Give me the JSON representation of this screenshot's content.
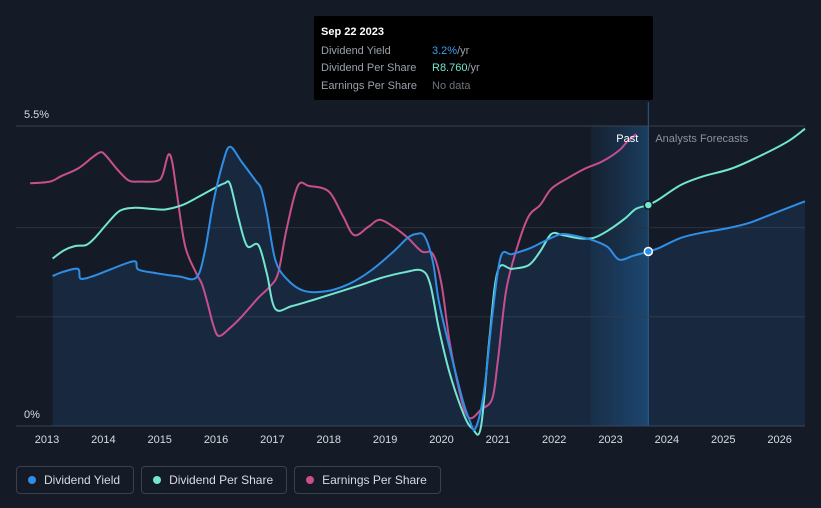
{
  "chart_data": {
    "type": "line",
    "title": "",
    "y_axis": {
      "top_label": "5.5%",
      "bottom_label": "0%",
      "range": [
        0,
        5.5
      ]
    },
    "x_axis": {
      "ticks": [
        "2013",
        "2014",
        "2015",
        "2016",
        "2017",
        "2018",
        "2019",
        "2020",
        "2021",
        "2022",
        "2023",
        "2024",
        "2025",
        "2026"
      ],
      "range": [
        2012.5,
        2026.5
      ]
    },
    "regions": {
      "past_label": "Past",
      "forecast_label": "Analysts Forecasts",
      "past_start": 2022.7,
      "divider": 2023.72
    },
    "series": [
      {
        "name": "Dividend Yield",
        "color": "#2f8ee5",
        "filled": true,
        "points": [
          [
            2013.15,
            2.75
          ],
          [
            2013.35,
            2.83
          ],
          [
            2013.6,
            2.88
          ],
          [
            2013.65,
            2.7
          ],
          [
            2013.9,
            2.76
          ],
          [
            2014.2,
            2.88
          ],
          [
            2014.6,
            3.02
          ],
          [
            2014.67,
            2.87
          ],
          [
            2015.0,
            2.8
          ],
          [
            2015.4,
            2.74
          ],
          [
            2015.7,
            2.72
          ],
          [
            2015.85,
            3.2
          ],
          [
            2016.0,
            4.1
          ],
          [
            2016.18,
            4.86
          ],
          [
            2016.3,
            5.12
          ],
          [
            2016.5,
            4.85
          ],
          [
            2016.75,
            4.5
          ],
          [
            2016.85,
            4.35
          ],
          [
            2016.95,
            3.9
          ],
          [
            2017.1,
            3.05
          ],
          [
            2017.3,
            2.7
          ],
          [
            2017.6,
            2.48
          ],
          [
            2018.0,
            2.47
          ],
          [
            2018.4,
            2.6
          ],
          [
            2018.8,
            2.85
          ],
          [
            2019.2,
            3.2
          ],
          [
            2019.45,
            3.45
          ],
          [
            2019.6,
            3.52
          ],
          [
            2019.75,
            3.48
          ],
          [
            2019.9,
            3.0
          ],
          [
            2020.0,
            2.3
          ],
          [
            2020.2,
            1.4
          ],
          [
            2020.42,
            0.5
          ],
          [
            2020.55,
            0.1
          ],
          [
            2020.65,
            -0.05
          ],
          [
            2020.8,
            0.6
          ],
          [
            2020.95,
            2.0
          ],
          [
            2021.1,
            3.1
          ],
          [
            2021.3,
            3.15
          ],
          [
            2021.6,
            3.25
          ],
          [
            2021.8,
            3.35
          ],
          [
            2022.0,
            3.45
          ],
          [
            2022.2,
            3.52
          ],
          [
            2022.5,
            3.47
          ],
          [
            2022.75,
            3.4
          ],
          [
            2023.0,
            3.28
          ],
          [
            2023.2,
            3.05
          ],
          [
            2023.45,
            3.12
          ],
          [
            2023.72,
            3.2
          ],
          [
            2023.9,
            3.26
          ],
          [
            2024.3,
            3.45
          ],
          [
            2024.7,
            3.55
          ],
          [
            2025.1,
            3.62
          ],
          [
            2025.5,
            3.72
          ],
          [
            2025.9,
            3.88
          ],
          [
            2026.5,
            4.12
          ]
        ]
      },
      {
        "name": "Dividend Per Share",
        "color": "#73e6cf",
        "filled": false,
        "points": [
          [
            2013.15,
            3.07
          ],
          [
            2013.35,
            3.22
          ],
          [
            2013.55,
            3.3
          ],
          [
            2013.75,
            3.32
          ],
          [
            2013.9,
            3.45
          ],
          [
            2014.15,
            3.75
          ],
          [
            2014.35,
            3.95
          ],
          [
            2014.6,
            4.0
          ],
          [
            2014.9,
            3.98
          ],
          [
            2015.15,
            3.97
          ],
          [
            2015.45,
            4.05
          ],
          [
            2015.7,
            4.18
          ],
          [
            2016.0,
            4.35
          ],
          [
            2016.2,
            4.45
          ],
          [
            2016.3,
            4.43
          ],
          [
            2016.45,
            3.8
          ],
          [
            2016.6,
            3.3
          ],
          [
            2016.8,
            3.32
          ],
          [
            2016.95,
            2.8
          ],
          [
            2017.1,
            2.15
          ],
          [
            2017.4,
            2.2
          ],
          [
            2017.8,
            2.32
          ],
          [
            2018.2,
            2.45
          ],
          [
            2018.6,
            2.58
          ],
          [
            2019.0,
            2.72
          ],
          [
            2019.4,
            2.82
          ],
          [
            2019.7,
            2.85
          ],
          [
            2019.85,
            2.6
          ],
          [
            2020.0,
            1.8
          ],
          [
            2020.2,
            0.95
          ],
          [
            2020.45,
            0.2
          ],
          [
            2020.6,
            -0.05
          ],
          [
            2020.75,
            -0.02
          ],
          [
            2020.9,
            1.6
          ],
          [
            2021.05,
            2.85
          ],
          [
            2021.3,
            2.88
          ],
          [
            2021.6,
            2.95
          ],
          [
            2021.8,
            3.2
          ],
          [
            2022.0,
            3.52
          ],
          [
            2022.2,
            3.5
          ],
          [
            2022.5,
            3.44
          ],
          [
            2022.75,
            3.45
          ],
          [
            2023.0,
            3.58
          ],
          [
            2023.3,
            3.8
          ],
          [
            2023.5,
            3.98
          ],
          [
            2023.72,
            4.05
          ],
          [
            2023.9,
            4.15
          ],
          [
            2024.3,
            4.42
          ],
          [
            2024.7,
            4.58
          ],
          [
            2025.2,
            4.72
          ],
          [
            2025.7,
            4.95
          ],
          [
            2026.2,
            5.22
          ],
          [
            2026.5,
            5.45
          ]
        ]
      },
      {
        "name": "Earnings Per Share",
        "color": "#c84f8e",
        "filled": false,
        "points": [
          [
            2012.75,
            4.45
          ],
          [
            2013.1,
            4.48
          ],
          [
            2013.3,
            4.58
          ],
          [
            2013.6,
            4.72
          ],
          [
            2013.85,
            4.92
          ],
          [
            2014.0,
            5.02
          ],
          [
            2014.1,
            4.95
          ],
          [
            2014.3,
            4.7
          ],
          [
            2014.5,
            4.5
          ],
          [
            2014.7,
            4.48
          ],
          [
            2015.0,
            4.49
          ],
          [
            2015.1,
            4.6
          ],
          [
            2015.2,
            4.97
          ],
          [
            2015.27,
            4.85
          ],
          [
            2015.35,
            4.3
          ],
          [
            2015.5,
            3.3
          ],
          [
            2015.7,
            2.8
          ],
          [
            2015.8,
            2.6
          ],
          [
            2015.9,
            2.25
          ],
          [
            2016.0,
            1.85
          ],
          [
            2016.1,
            1.65
          ],
          [
            2016.3,
            1.8
          ],
          [
            2016.5,
            2.0
          ],
          [
            2016.8,
            2.35
          ],
          [
            2017.0,
            2.55
          ],
          [
            2017.15,
            2.8
          ],
          [
            2017.3,
            3.6
          ],
          [
            2017.5,
            4.4
          ],
          [
            2017.7,
            4.4
          ],
          [
            2018.05,
            4.3
          ],
          [
            2018.3,
            3.85
          ],
          [
            2018.5,
            3.5
          ],
          [
            2018.75,
            3.65
          ],
          [
            2018.95,
            3.78
          ],
          [
            2019.2,
            3.65
          ],
          [
            2019.45,
            3.45
          ],
          [
            2019.7,
            3.2
          ],
          [
            2019.9,
            3.15
          ],
          [
            2020.05,
            2.6
          ],
          [
            2020.2,
            1.5
          ],
          [
            2020.4,
            0.5
          ],
          [
            2020.5,
            0.2
          ],
          [
            2020.6,
            0.15
          ],
          [
            2020.75,
            0.3
          ],
          [
            2020.95,
            0.5
          ],
          [
            2021.05,
            1.2
          ],
          [
            2021.2,
            2.5
          ],
          [
            2021.4,
            3.3
          ],
          [
            2021.6,
            3.85
          ],
          [
            2021.8,
            4.05
          ],
          [
            2022.0,
            4.35
          ],
          [
            2022.3,
            4.55
          ],
          [
            2022.6,
            4.72
          ],
          [
            2022.9,
            4.85
          ],
          [
            2023.2,
            5.05
          ],
          [
            2023.35,
            5.22
          ],
          [
            2023.5,
            5.35
          ]
        ]
      }
    ],
    "highlight": {
      "x": 2023.72,
      "dividend_yield": 3.2,
      "dividend_per_share": 4.05
    }
  },
  "tooltip": {
    "date": "Sep 22 2023",
    "rows": [
      {
        "label": "Dividend Yield",
        "value": "3.2%",
        "unit": " /yr"
      },
      {
        "label": "Dividend Per Share",
        "value": "R8.760",
        "unit": " /yr"
      },
      {
        "label": "Earnings Per Share",
        "value": "No data",
        "unit": ""
      }
    ]
  },
  "legend": [
    {
      "label": "Dividend Yield",
      "color": "#2f8ee5"
    },
    {
      "label": "Dividend Per Share",
      "color": "#73e6cf"
    },
    {
      "label": "Earnings Per Share",
      "color": "#c84f8e"
    }
  ]
}
